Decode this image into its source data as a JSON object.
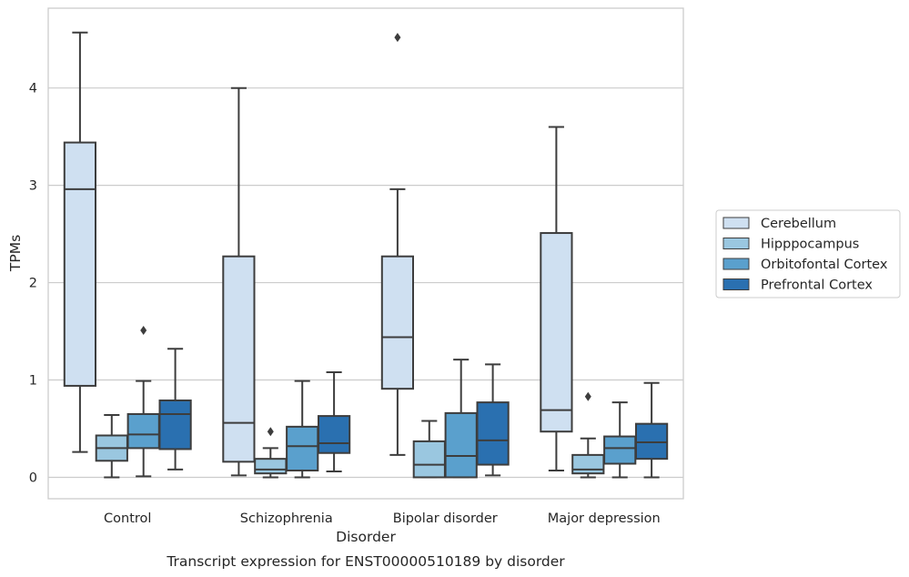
{
  "chart_data": {
    "type": "box",
    "xlabel": "Disorder",
    "ylabel": "TPMs",
    "caption": "Transcript expression for ENST00000510189 by disorder",
    "ylim": [
      -0.22,
      4.82
    ],
    "yticks": [
      0,
      1,
      2,
      3,
      4
    ],
    "grid": "horizontal",
    "legend_position": "right",
    "categories": [
      "Control",
      "Schizophrenia",
      "Bipolar disorder",
      "Major depression"
    ],
    "series": [
      {
        "name": "Cerebellum",
        "color": "#cfe0f1",
        "boxes": [
          {
            "whisker_low": 0.26,
            "q1": 0.94,
            "median": 2.96,
            "q3": 3.44,
            "whisker_high": 4.57,
            "outliers": []
          },
          {
            "whisker_low": 0.02,
            "q1": 0.16,
            "median": 0.56,
            "q3": 2.27,
            "whisker_high": 4.0,
            "outliers": []
          },
          {
            "whisker_low": 0.23,
            "q1": 0.91,
            "median": 1.44,
            "q3": 2.27,
            "whisker_high": 2.96,
            "outliers": [
              4.52
            ]
          },
          {
            "whisker_low": 0.07,
            "q1": 0.47,
            "median": 0.69,
            "q3": 2.51,
            "whisker_high": 3.6,
            "outliers": []
          }
        ]
      },
      {
        "name": "Hipppocampus",
        "color": "#9ac7e0",
        "boxes": [
          {
            "whisker_low": 0.0,
            "q1": 0.17,
            "median": 0.3,
            "q3": 0.43,
            "whisker_high": 0.64,
            "outliers": []
          },
          {
            "whisker_low": 0.0,
            "q1": 0.04,
            "median": 0.08,
            "q3": 0.19,
            "whisker_high": 0.3,
            "outliers": [
              0.47
            ]
          },
          {
            "whisker_low": 0.0,
            "q1": 0.0,
            "median": 0.13,
            "q3": 0.37,
            "whisker_high": 0.58,
            "outliers": []
          },
          {
            "whisker_low": 0.0,
            "q1": 0.04,
            "median": 0.08,
            "q3": 0.23,
            "whisker_high": 0.4,
            "outliers": [
              0.83
            ]
          }
        ]
      },
      {
        "name": "Orbitofontal Cortex",
        "color": "#5aa0cd",
        "boxes": [
          {
            "whisker_low": 0.01,
            "q1": 0.3,
            "median": 0.44,
            "q3": 0.65,
            "whisker_high": 0.99,
            "outliers": [
              1.51
            ]
          },
          {
            "whisker_low": 0.0,
            "q1": 0.07,
            "median": 0.32,
            "q3": 0.52,
            "whisker_high": 0.99,
            "outliers": []
          },
          {
            "whisker_low": 0.0,
            "q1": 0.0,
            "median": 0.22,
            "q3": 0.66,
            "whisker_high": 1.21,
            "outliers": []
          },
          {
            "whisker_low": 0.0,
            "q1": 0.14,
            "median": 0.3,
            "q3": 0.42,
            "whisker_high": 0.77,
            "outliers": []
          }
        ]
      },
      {
        "name": "Prefrontal Cortex",
        "color": "#2a70b0",
        "boxes": [
          {
            "whisker_low": 0.08,
            "q1": 0.29,
            "median": 0.65,
            "q3": 0.79,
            "whisker_high": 1.32,
            "outliers": []
          },
          {
            "whisker_low": 0.06,
            "q1": 0.25,
            "median": 0.35,
            "q3": 0.63,
            "whisker_high": 1.08,
            "outliers": []
          },
          {
            "whisker_low": 0.02,
            "q1": 0.13,
            "median": 0.38,
            "q3": 0.77,
            "whisker_high": 1.16,
            "outliers": []
          },
          {
            "whisker_low": 0.0,
            "q1": 0.19,
            "median": 0.36,
            "q3": 0.55,
            "whisker_high": 0.97,
            "outliers": []
          }
        ]
      }
    ]
  }
}
